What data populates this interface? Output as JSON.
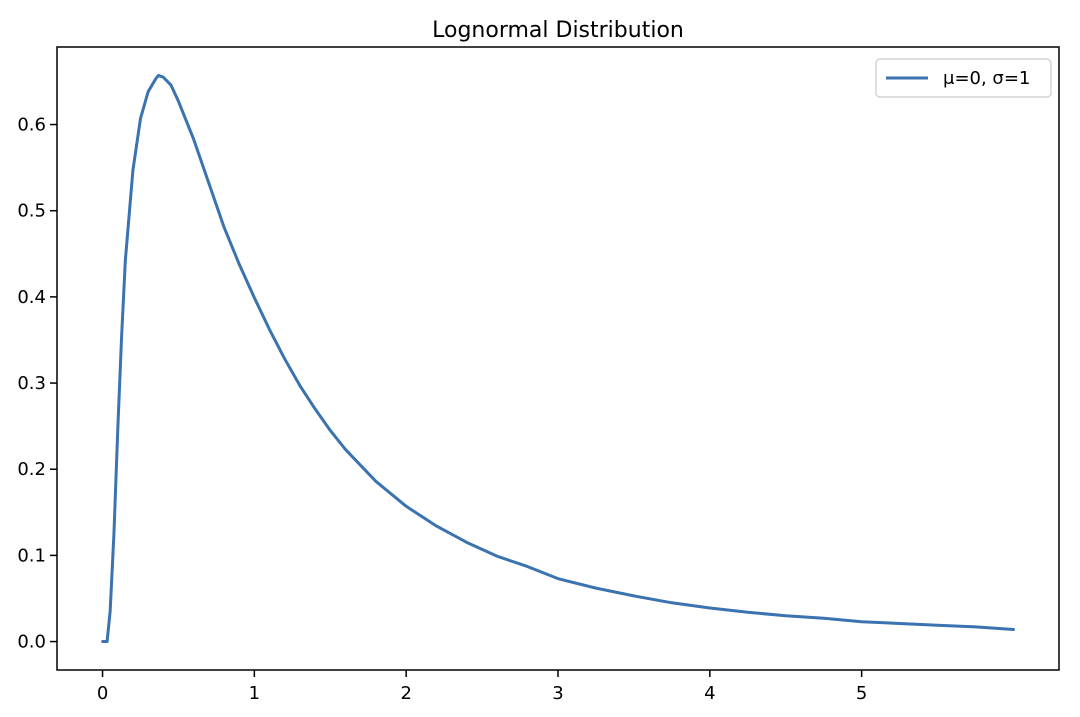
{
  "chart_data": {
    "type": "line",
    "title": "Lognormal Distribution",
    "xlabel": "",
    "ylabel": "",
    "xlim": [
      -0.3,
      6.3
    ],
    "ylim": [
      -0.033,
      0.69
    ],
    "xticks": [
      0,
      1,
      2,
      3,
      4,
      5
    ],
    "yticks": [
      0.0,
      0.1,
      0.2,
      0.3,
      0.4,
      0.5,
      0.6
    ],
    "xtick_labels": [
      "0",
      "1",
      "2",
      "3",
      "4",
      "5"
    ],
    "ytick_labels": [
      "0.0",
      "0.1",
      "0.2",
      "0.3",
      "0.4",
      "0.5",
      "0.6"
    ],
    "grid": false,
    "legend_position": "upper right",
    "series": [
      {
        "name": "μ=0, σ=1",
        "color": "#3a73b0",
        "x": [
          0.001,
          0.01,
          0.02,
          0.03,
          0.05,
          0.075,
          0.1,
          0.125,
          0.15,
          0.2,
          0.25,
          0.3,
          0.35,
          0.368,
          0.4,
          0.45,
          0.5,
          0.6,
          0.7,
          0.8,
          0.9,
          1.0,
          1.1,
          1.2,
          1.3,
          1.4,
          1.5,
          1.6,
          1.8,
          2.0,
          2.2,
          2.4,
          2.6,
          2.8,
          3.0,
          3.25,
          3.5,
          3.75,
          4.0,
          4.25,
          4.5,
          4.75,
          5.0,
          5.25,
          5.5,
          5.75,
          6.0
        ],
        "y": [
          0.0,
          0.0,
          0.0,
          0.0,
          0.035,
          0.125,
          0.245,
          0.352,
          0.442,
          0.547,
          0.607,
          0.638,
          0.653,
          0.657,
          0.655,
          0.646,
          0.627,
          0.583,
          0.532,
          0.481,
          0.438,
          0.399,
          0.362,
          0.328,
          0.297,
          0.27,
          0.245,
          0.223,
          0.186,
          0.157,
          0.134,
          0.115,
          0.099,
          0.087,
          0.073,
          0.062,
          0.053,
          0.045,
          0.039,
          0.034,
          0.03,
          0.027,
          0.023,
          0.021,
          0.019,
          0.017,
          0.014
        ]
      }
    ]
  }
}
